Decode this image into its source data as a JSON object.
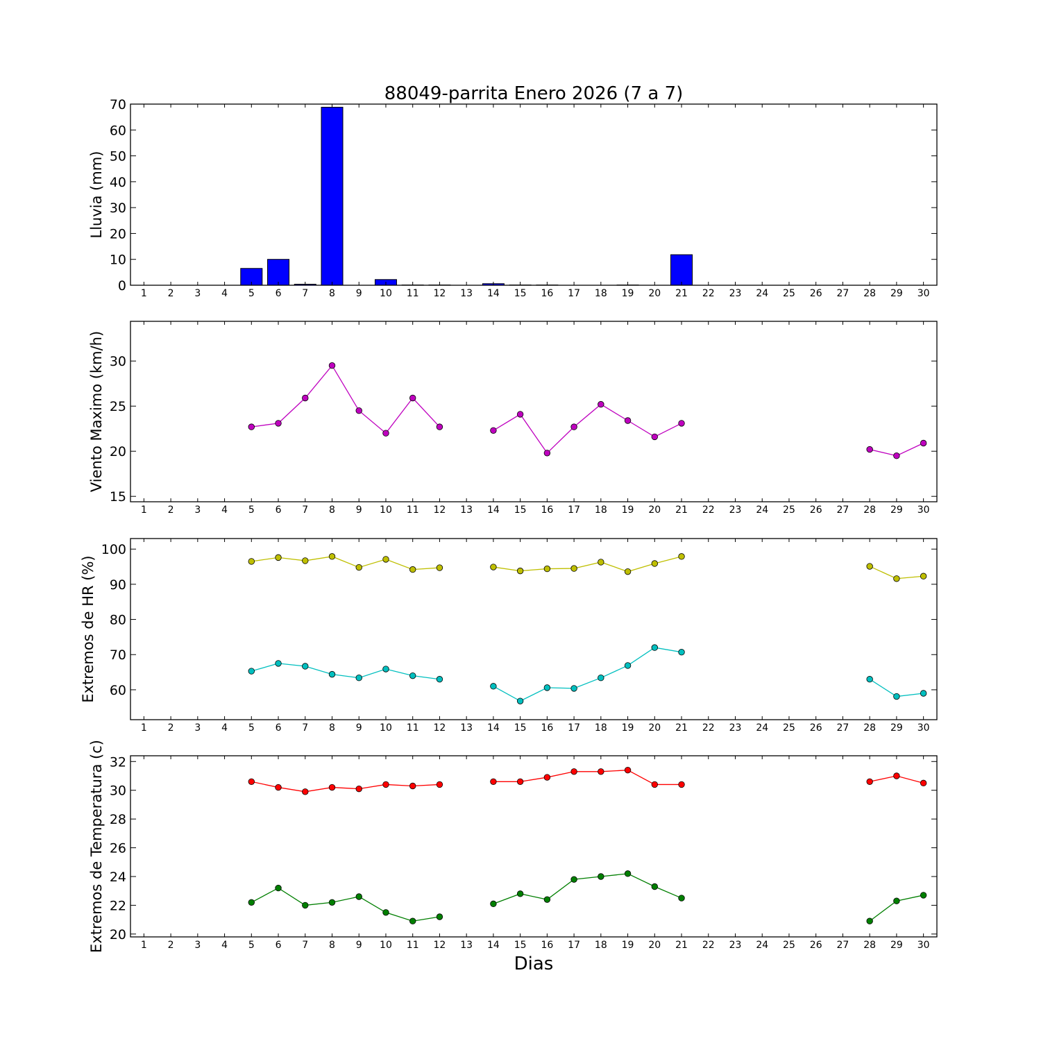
{
  "title": "88049-parrita Enero 2026  (7 a 7)",
  "xlabel": "Dias",
  "chart_data": [
    {
      "type": "bar",
      "ylabel": "Lluvia (mm)",
      "ylim": [
        0,
        70
      ],
      "yticks": [
        0,
        10,
        20,
        30,
        40,
        50,
        60,
        70
      ],
      "x": [
        1,
        2,
        3,
        4,
        5,
        6,
        7,
        8,
        9,
        10,
        11,
        12,
        13,
        14,
        15,
        16,
        17,
        18,
        19,
        20,
        21,
        22,
        23,
        24,
        25,
        26,
        27,
        28,
        29,
        30
      ],
      "series": [
        {
          "color": "#0000ff",
          "values": [
            0,
            0,
            0,
            0,
            6.5,
            10.0,
            0.4,
            68.8,
            0,
            2.2,
            0.1,
            0.1,
            0,
            0.6,
            0.1,
            0.1,
            0,
            0,
            0.1,
            0,
            11.8,
            0,
            0,
            0,
            0,
            0,
            0,
            0,
            0,
            0
          ]
        }
      ]
    },
    {
      "type": "line",
      "ylabel": "Viento Maximo (km/h)",
      "ylim": [
        14.4,
        34.4
      ],
      "yticks": [
        15,
        20,
        25,
        30
      ],
      "x": [
        1,
        2,
        3,
        4,
        5,
        6,
        7,
        8,
        9,
        10,
        11,
        12,
        13,
        14,
        15,
        16,
        17,
        18,
        19,
        20,
        21,
        22,
        23,
        24,
        25,
        26,
        27,
        28,
        29,
        30
      ],
      "series": [
        {
          "color": "#bf00bf",
          "values": [
            null,
            null,
            null,
            null,
            22.7,
            23.1,
            25.9,
            29.5,
            24.5,
            22.0,
            25.9,
            22.7,
            null,
            22.3,
            24.1,
            19.8,
            22.7,
            25.2,
            23.4,
            21.6,
            23.1,
            null,
            null,
            null,
            null,
            null,
            null,
            20.2,
            19.5,
            20.9
          ]
        }
      ]
    },
    {
      "type": "line",
      "ylabel": "Extremos de HR (%)",
      "ylim": [
        51.5,
        103.0
      ],
      "yticks": [
        60,
        70,
        80,
        90,
        100
      ],
      "x": [
        1,
        2,
        3,
        4,
        5,
        6,
        7,
        8,
        9,
        10,
        11,
        12,
        13,
        14,
        15,
        16,
        17,
        18,
        19,
        20,
        21,
        22,
        23,
        24,
        25,
        26,
        27,
        28,
        29,
        30
      ],
      "series": [
        {
          "color": "#bfbf00",
          "values": [
            null,
            null,
            null,
            null,
            96.5,
            97.6,
            96.7,
            97.9,
            94.8,
            97.1,
            94.2,
            94.7,
            null,
            94.9,
            93.8,
            94.4,
            94.5,
            96.3,
            93.6,
            95.9,
            97.9,
            null,
            null,
            null,
            null,
            null,
            null,
            95.1,
            91.6,
            92.3
          ]
        },
        {
          "color": "#00bfbf",
          "values": [
            null,
            null,
            null,
            null,
            65.3,
            67.5,
            66.7,
            64.4,
            63.4,
            65.9,
            64.0,
            63.0,
            null,
            61.0,
            56.8,
            60.6,
            60.4,
            63.4,
            66.9,
            72.0,
            70.7,
            null,
            null,
            null,
            null,
            null,
            null,
            63.0,
            58.1,
            59.0
          ]
        }
      ]
    },
    {
      "type": "line",
      "ylabel": "Extremos de Temperatura (c)",
      "ylim": [
        19.8,
        32.4
      ],
      "yticks": [
        20,
        22,
        24,
        26,
        28,
        30,
        32
      ],
      "x": [
        1,
        2,
        3,
        4,
        5,
        6,
        7,
        8,
        9,
        10,
        11,
        12,
        13,
        14,
        15,
        16,
        17,
        18,
        19,
        20,
        21,
        22,
        23,
        24,
        25,
        26,
        27,
        28,
        29,
        30
      ],
      "series": [
        {
          "color": "#ff0000",
          "values": [
            null,
            null,
            null,
            null,
            30.6,
            30.2,
            29.9,
            30.2,
            30.1,
            30.4,
            30.3,
            30.4,
            null,
            30.6,
            30.6,
            30.9,
            31.3,
            31.3,
            31.4,
            30.4,
            30.4,
            null,
            null,
            null,
            null,
            null,
            null,
            30.6,
            31.0,
            30.5
          ]
        },
        {
          "color": "#007f00",
          "values": [
            null,
            null,
            null,
            null,
            22.2,
            23.2,
            22.0,
            22.2,
            22.6,
            21.5,
            20.9,
            21.2,
            null,
            22.1,
            22.8,
            22.4,
            23.8,
            24.0,
            24.2,
            23.3,
            22.5,
            null,
            null,
            null,
            null,
            null,
            null,
            20.9,
            22.3,
            22.7
          ]
        }
      ]
    }
  ]
}
